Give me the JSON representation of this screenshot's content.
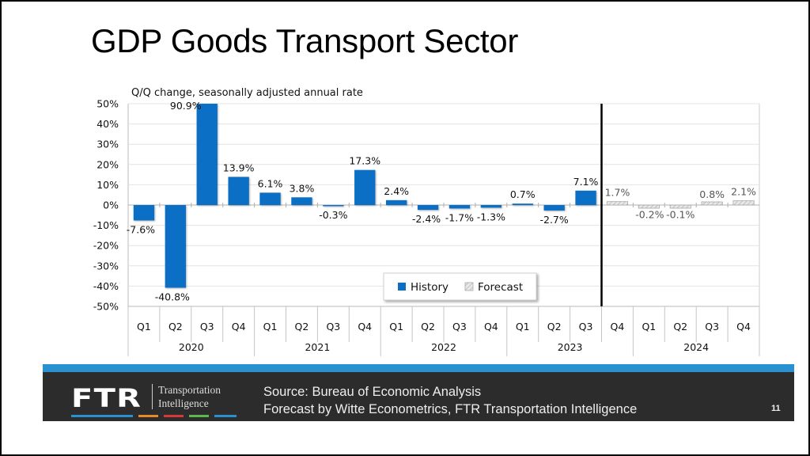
{
  "slide": {
    "title": "GDP Goods Transport Sector",
    "page_number": "11"
  },
  "footer": {
    "logo_mark": "FTR",
    "logo_line1": "Transportation",
    "logo_line2": "Intelligence",
    "source_line1": "Source: Bureau of Economic Analysis",
    "source_line2": "Forecast by Witte Econometrics, FTR Transportation Intelligence",
    "stripe_color": "#2a91d0",
    "logo_line_colors": [
      "#2a91d0",
      "#e8892b",
      "#d9383a",
      "#5bb84a",
      "#2a91d0"
    ]
  },
  "chart_data": {
    "type": "bar",
    "title": "",
    "subtitle": "Q/Q change, seasonally adjusted annual rate",
    "xlabel": "",
    "ylabel": "",
    "ylim": [
      -50,
      50
    ],
    "yticks": [
      50,
      40,
      30,
      20,
      10,
      0,
      -10,
      -20,
      -30,
      -40,
      -50
    ],
    "ytick_labels": [
      "50%",
      "40%",
      "30%",
      "20%",
      "10%",
      "0%",
      "-10%",
      "-20%",
      "-30%",
      "-40%",
      "-50%"
    ],
    "grid": true,
    "clipped_note": "Q3 2020 value 90.9% exceeds the axis maximum and is clipped at 50%",
    "categories": [
      "Q1",
      "Q2",
      "Q3",
      "Q4",
      "Q1",
      "Q2",
      "Q3",
      "Q4",
      "Q1",
      "Q2",
      "Q3",
      "Q4",
      "Q1",
      "Q2",
      "Q3",
      "Q4",
      "Q1",
      "Q2",
      "Q3",
      "Q4"
    ],
    "years": [
      {
        "label": "2020",
        "span": 4
      },
      {
        "label": "2021",
        "span": 4
      },
      {
        "label": "2022",
        "span": 4
      },
      {
        "label": "2023",
        "span": 4
      },
      {
        "label": "2024",
        "span": 4
      }
    ],
    "values": [
      -7.6,
      -40.8,
      90.9,
      13.9,
      6.1,
      3.8,
      -0.3,
      17.3,
      2.4,
      -2.4,
      -1.7,
      -1.3,
      0.7,
      -2.7,
      7.1,
      1.7,
      -0.2,
      -0.1,
      0.8,
      2.1
    ],
    "data_labels": [
      "-7.6%",
      "-40.8%",
      "90.9%",
      "13.9%",
      "6.1%",
      "3.8%",
      "-0.3%",
      "17.3%",
      "2.4%",
      "-2.4%",
      "-1.7%",
      "-1.3%",
      "0.7%",
      "-2.7%",
      "7.1%",
      "1.7%",
      "-0.2%",
      "-0.1%",
      "0.8%",
      "2.1%"
    ],
    "kind": [
      "history",
      "history",
      "history",
      "history",
      "history",
      "history",
      "history",
      "history",
      "history",
      "history",
      "history",
      "history",
      "history",
      "history",
      "history",
      "forecast",
      "forecast",
      "forecast",
      "forecast",
      "forecast"
    ],
    "series": [
      {
        "name": "History",
        "color": "#0b6fc6"
      },
      {
        "name": "Forecast",
        "color": "#d9d9d9",
        "pattern": "hatched"
      }
    ],
    "legend": {
      "position": "bottom-center",
      "entries": [
        "History",
        "Forecast"
      ]
    },
    "forecast_divider_after_index": 14
  }
}
